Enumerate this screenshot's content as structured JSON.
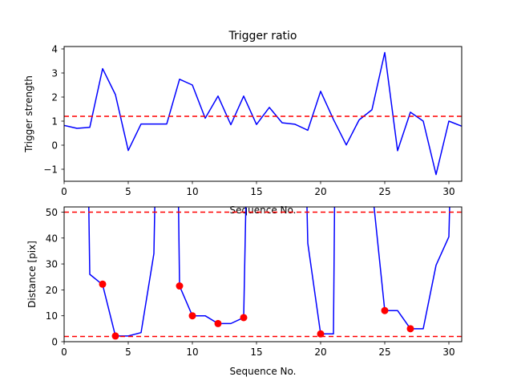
{
  "chart_data": [
    {
      "type": "line",
      "title": "Trigger ratio",
      "xlabel": "Sequence No.",
      "ylabel": "Trigger strength",
      "xlim": [
        0,
        31
      ],
      "ylim": [
        -1.5,
        4.1
      ],
      "xticks": [
        0,
        5,
        10,
        15,
        20,
        25,
        30
      ],
      "xtick_labels": [
        "0",
        "5",
        "10",
        "15",
        "20",
        "25",
        "30"
      ],
      "yticks": [
        -1,
        0,
        1,
        2,
        3,
        4
      ],
      "ytick_labels": [
        "−1",
        "0",
        "1",
        "2",
        "3",
        "4"
      ],
      "series": [
        {
          "color": "#0000ff",
          "x": [
            0,
            1,
            2,
            3,
            4,
            5,
            6,
            7,
            8,
            9,
            10,
            11,
            12,
            13,
            14,
            15,
            16,
            17,
            18,
            19,
            20,
            21,
            22,
            23,
            24,
            25,
            26,
            27,
            28,
            29,
            30,
            31
          ],
          "values": [
            0.82,
            0.7,
            0.74,
            3.18,
            2.1,
            -0.22,
            0.88,
            0.88,
            0.88,
            2.74,
            2.5,
            1.12,
            2.04,
            0.85,
            2.04,
            0.86,
            1.57,
            0.93,
            0.87,
            0.62,
            2.24,
            1.07,
            0.01,
            1.05,
            1.47,
            3.85,
            -0.23,
            1.37,
            1.0,
            -1.22,
            1.0,
            0.79
          ]
        }
      ],
      "hlines": [
        {
          "y": 1.2,
          "color": "#ff0000",
          "style": "dashed"
        }
      ]
    },
    {
      "type": "line",
      "title": "",
      "xlabel": "Sequence No.",
      "ylabel": "Distance [pix]",
      "xlim": [
        0,
        31
      ],
      "ylim": [
        0,
        52
      ],
      "xticks": [
        0,
        5,
        10,
        15,
        20,
        25,
        30
      ],
      "xtick_labels": [
        "0",
        "5",
        "10",
        "15",
        "20",
        "25",
        "30"
      ],
      "yticks": [
        0,
        10,
        20,
        30,
        40,
        50
      ],
      "ytick_labels": [
        "0",
        "10",
        "20",
        "30",
        "40",
        "50"
      ],
      "series": [
        {
          "color": "#0000ff",
          "segments": [
            {
              "x": [
                1.9,
                2,
                3,
                4,
                5,
                6,
                7,
                7.1
              ],
              "values": [
                60,
                26,
                22,
                2.2,
                2.2,
                3.5,
                34,
                60
              ]
            },
            {
              "x": [
                8.9,
                9,
                10,
                11,
                12,
                13,
                14,
                14.2
              ],
              "values": [
                60,
                21.5,
                10,
                10,
                7,
                7,
                9.3,
                60
              ]
            },
            {
              "x": [
                18.9,
                19,
                20,
                21,
                21.1
              ],
              "values": [
                60,
                38,
                3,
                3,
                60
              ]
            },
            {
              "x": [
                24,
                25,
                26,
                27,
                28,
                29,
                30,
                30.1
              ],
              "values": [
                60,
                12,
                12,
                5,
                5,
                29.5,
                40.5,
                60
              ]
            }
          ]
        },
        {
          "name": "",
          "color": "#ff0000",
          "marker": "circle",
          "x": [
            3,
            4,
            9,
            10,
            12,
            14,
            20,
            25,
            27
          ],
          "values": [
            22.2,
            2.2,
            21.5,
            10,
            7,
            9.3,
            3,
            12,
            5
          ]
        }
      ],
      "hlines": [
        {
          "y": 50,
          "color": "#ff0000",
          "style": "dashed"
        },
        {
          "y": 2,
          "color": "#ff0000",
          "style": "dashed"
        }
      ]
    }
  ]
}
